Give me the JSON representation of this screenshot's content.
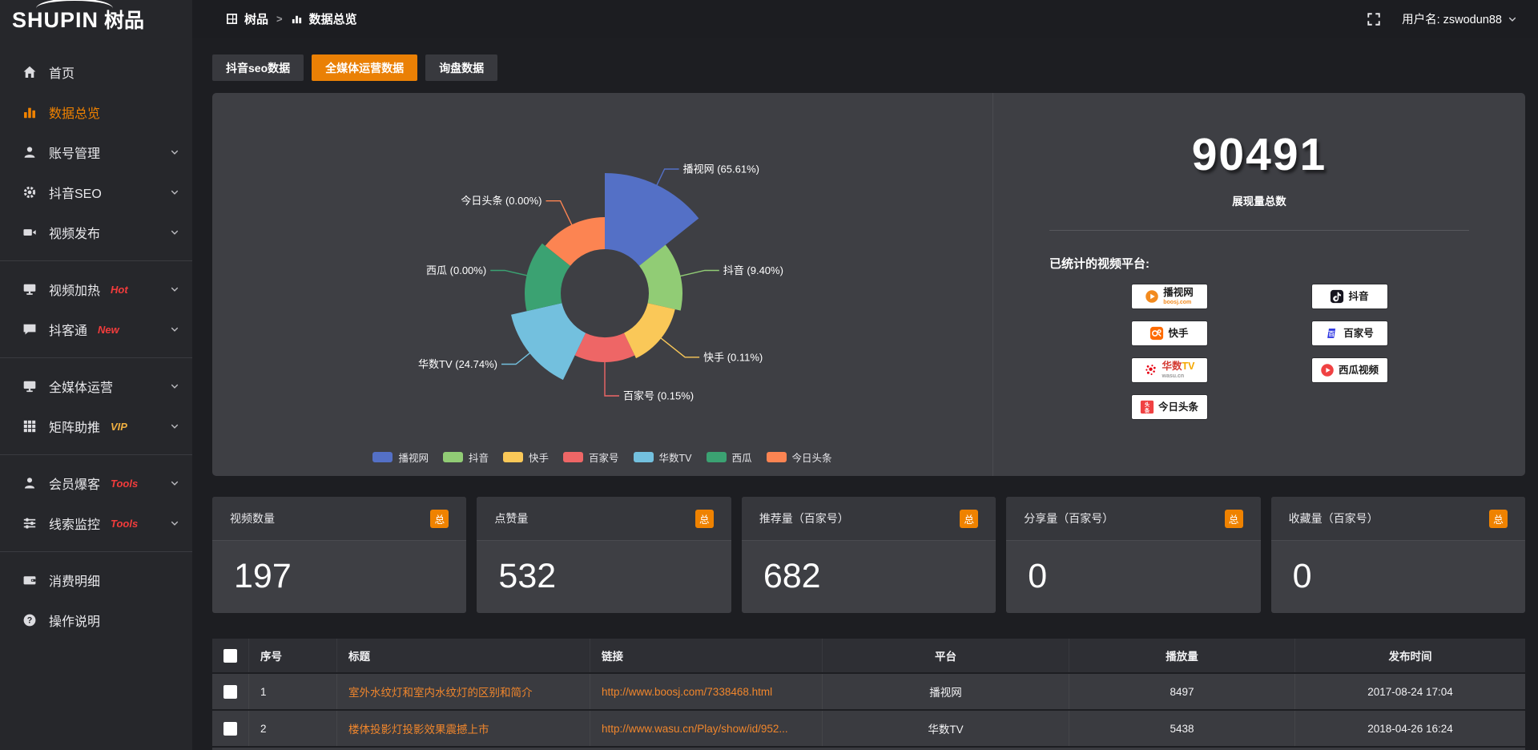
{
  "colors": {
    "accent_orange": "#ef8200",
    "link_orange": "#f0862c",
    "badge_red": "#f23c3c",
    "badge_vip_gold": "#efaf41"
  },
  "topbar": {
    "logo_en": "SHUPIN",
    "logo_cn": "树品",
    "breadcrumb": {
      "root": "树品",
      "current": "数据总览"
    },
    "username": "用户名: zswodun88"
  },
  "sidebar": {
    "items": [
      {
        "label": "首页",
        "icon": "home-icon"
      },
      {
        "label": "数据总览",
        "icon": "bar-chart-icon",
        "active": true
      },
      {
        "label": "账号管理",
        "icon": "user-icon",
        "chevron": true
      },
      {
        "label": "抖音SEO",
        "icon": "gear-icon",
        "chevron": true
      },
      {
        "label": "视频发布",
        "icon": "camera-icon",
        "chevron": true,
        "divider_after": true
      },
      {
        "label": "视频加热",
        "icon": "monitor-play-icon",
        "chevron": true,
        "badge": "Hot",
        "badge_color": "red"
      },
      {
        "label": "抖客通",
        "icon": "chat-icon",
        "chevron": true,
        "badge": "New",
        "badge_color": "red",
        "divider_after": true
      },
      {
        "label": "全媒体运营",
        "icon": "monitor-icon",
        "chevron": true
      },
      {
        "label": "矩阵助推",
        "icon": "grid-icon",
        "chevron": true,
        "badge": "VIP",
        "badge_color": "gold",
        "divider_after": true
      },
      {
        "label": "会员爆客",
        "icon": "person-icon",
        "chevron": true,
        "badge": "Tools",
        "badge_color": "red"
      },
      {
        "label": "线索监控",
        "icon": "sliders-icon",
        "chevron": true,
        "badge": "Tools",
        "badge_color": "red",
        "divider_after": true
      },
      {
        "label": "消费明细",
        "icon": "wallet-icon"
      },
      {
        "label": "操作说明",
        "icon": "question-icon"
      }
    ]
  },
  "tabs": [
    {
      "label": "抖音seo数据",
      "active": false
    },
    {
      "label": "全媒体运营数据",
      "active": true
    },
    {
      "label": "询盘数据",
      "active": false
    }
  ],
  "chart_data": {
    "type": "pie",
    "variant": "nightingale-rose",
    "legend_position": "bottom",
    "start_angle_deg": 0,
    "items": [
      {
        "name": "播视网",
        "percent": 65.61,
        "label": "播视网 (65.61%)",
        "color": "#5470c6",
        "radius": 150
      },
      {
        "name": "抖音",
        "percent": 9.4,
        "label": "抖音 (9.40%)",
        "color": "#91cc75",
        "radius": 97
      },
      {
        "name": "快手",
        "percent": 0.11,
        "label": "快手 (0.11%)",
        "color": "#fac858",
        "radius": 90
      },
      {
        "name": "百家号",
        "percent": 0.15,
        "label": "百家号 (0.15%)",
        "color": "#ee6666",
        "radius": 86
      },
      {
        "name": "华数TV",
        "percent": 24.74,
        "label": "华数TV (24.74%)",
        "color": "#73c0de",
        "radius": 120
      },
      {
        "name": "西瓜",
        "percent": 0.0,
        "label": "西瓜 (0.00%)",
        "color": "#3ba272",
        "radius": 100
      },
      {
        "name": "今日头条",
        "percent": 0.0,
        "label": "今日头条 (0.00%)",
        "color": "#fc8452",
        "radius": 95
      }
    ]
  },
  "summary": {
    "total_value": "90491",
    "total_label": "展现量总数",
    "platforms_title": "已统计的视频平台:",
    "platforms": [
      {
        "logo": "boosj-logo",
        "name_parts": [
          {
            "t": "播视网",
            "c": "#1b1b1b"
          }
        ],
        "sub": "boosj.com",
        "sub_color": "#f28a1e"
      },
      {
        "logo": "douyin-logo",
        "name_parts": [
          {
            "t": "抖音",
            "c": "#1b1b1b"
          }
        ]
      },
      {
        "logo": "kuaishou-logo",
        "name_parts": [
          {
            "t": "快手",
            "c": "#1b1b1b"
          }
        ]
      },
      {
        "logo": "baijiahao-logo",
        "name_parts": [
          {
            "t": "百家号",
            "c": "#1b1b1b"
          }
        ]
      },
      {
        "logo": "wasu-logo",
        "name_parts": [
          {
            "t": "华数",
            "c": "#d43c33"
          },
          {
            "t": "TV",
            "c": "#f5a800"
          }
        ],
        "sub": "wasu.cn",
        "sub_color": "#9a9a9a"
      },
      {
        "logo": "xigua-logo",
        "name_parts": [
          {
            "t": "西瓜视频",
            "c": "#1b1b1b"
          }
        ]
      },
      {
        "logo": "toutiao-logo",
        "name_parts": [
          {
            "t": "今日头条",
            "c": "#1b1b1b"
          }
        ]
      }
    ]
  },
  "stat_cards": [
    {
      "label": "视频数量",
      "badge": "总",
      "value": "197"
    },
    {
      "label": "点赞量",
      "badge": "总",
      "value": "532"
    },
    {
      "label": "推荐量（百家号）",
      "badge": "总",
      "value": "682"
    },
    {
      "label": "分享量（百家号）",
      "badge": "总",
      "value": "0"
    },
    {
      "label": "收藏量（百家号）",
      "badge": "总",
      "value": "0"
    }
  ],
  "table": {
    "headers": {
      "num": "序号",
      "title": "标题",
      "link": "链接",
      "platform": "平台",
      "views": "播放量",
      "time": "发布时间"
    },
    "rows": [
      {
        "num": "1",
        "title": "室外水纹灯和室内水纹灯的区别和简介",
        "link": "http://www.boosj.com/7338468.html",
        "platform": "播视网",
        "views": "8497",
        "time": "2017-08-24 17:04"
      },
      {
        "num": "2",
        "title": "楼体投影灯投影效果震撼上市",
        "link": "http://www.wasu.cn/Play/show/id/952...",
        "platform": "华数TV",
        "views": "5438",
        "time": "2018-04-26 16:24"
      }
    ]
  }
}
